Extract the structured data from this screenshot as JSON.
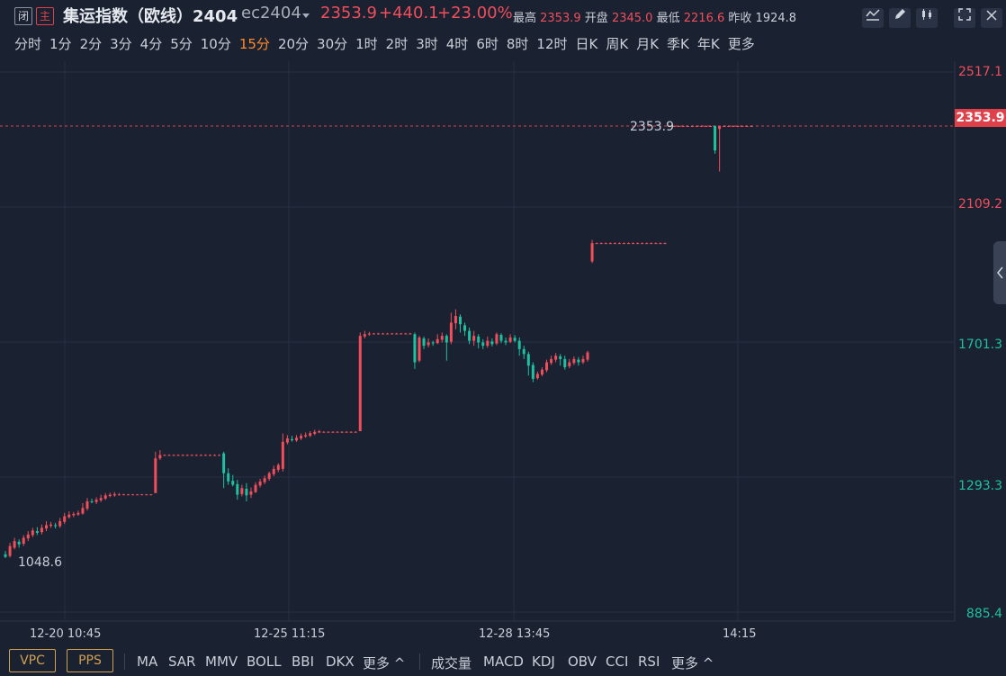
{
  "header": {
    "badge_closed": "闭",
    "badge_main": "主",
    "title": "集运指数（欧线）2404",
    "contract": "ec2404",
    "price": "2353.9",
    "change": "+440.1",
    "change_pct": "+23.00%",
    "high_label": "最高",
    "high_value": "2353.9",
    "open_label": "开盘",
    "open_value": "2345.0",
    "low_label": "最低",
    "low_value": "2216.6",
    "prev_label": "昨收",
    "prev_value": "1924.8"
  },
  "periods": [
    "分时",
    "1分",
    "2分",
    "3分",
    "4分",
    "5分",
    "10分",
    "15分",
    "20分",
    "30分",
    "1时",
    "2时",
    "3时",
    "4时",
    "6时",
    "8时",
    "12时",
    "日K",
    "周K",
    "月K",
    "季K",
    "年K",
    "更多"
  ],
  "active_period": "15分",
  "colors": {
    "up": "#f04e5a",
    "down": "#1fc0a0",
    "bg": "#1a2131",
    "grid": "#263044",
    "accent": "#ff8a2a"
  },
  "price_axis": {
    "top": "2517.1",
    "current": "2353.9",
    "l2": "2109.2",
    "l3": "1701.3",
    "l4": "1293.3",
    "bottom": "885.4"
  },
  "time_axis": [
    "12-20 10:45",
    "12-25 11:15",
    "12-28 13:45",
    "14:15"
  ],
  "chart_data": {
    "type": "candlestick",
    "ylim": [
      885.4,
      2517.1
    ],
    "last_price": 2353.9,
    "low_marker": "1048.6",
    "high_marker": "2353.9",
    "x_labels": [
      "12-20 10:45",
      "12-25 11:15",
      "12-28 13:45",
      "14:15"
    ],
    "candles": [
      [
        1060,
        1052,
        1070,
        1048.6
      ],
      [
        1055,
        1085,
        1095,
        1050
      ],
      [
        1080,
        1100,
        1110,
        1075
      ],
      [
        1098,
        1090,
        1105,
        1080
      ],
      [
        1092,
        1110,
        1118,
        1085
      ],
      [
        1108,
        1120,
        1130,
        1100
      ],
      [
        1118,
        1132,
        1140,
        1112
      ],
      [
        1130,
        1125,
        1142,
        1118
      ],
      [
        1127,
        1140,
        1150,
        1120
      ],
      [
        1138,
        1148,
        1160,
        1130
      ],
      [
        1146,
        1150,
        1158,
        1140
      ],
      [
        1148,
        1145,
        1155,
        1138
      ],
      [
        1145,
        1160,
        1170,
        1140
      ],
      [
        1158,
        1175,
        1185,
        1152
      ],
      [
        1172,
        1180,
        1190,
        1168
      ],
      [
        1178,
        1182,
        1188,
        1172
      ],
      [
        1180,
        1185,
        1192,
        1176
      ],
      [
        1183,
        1200,
        1215,
        1180
      ],
      [
        1198,
        1220,
        1230,
        1192
      ],
      [
        1220,
        1218,
        1228,
        1214
      ],
      [
        1218,
        1225,
        1232,
        1212
      ],
      [
        1223,
        1230,
        1240,
        1218
      ],
      [
        1228,
        1238,
        1245,
        1224
      ],
      [
        1236,
        1240,
        1246,
        1232
      ],
      [
        1238,
        1242,
        1248,
        1234
      ],
      [
        1240,
        1241,
        1245,
        1238
      ],
      [
        1241,
        1241,
        1243,
        1240
      ],
      [
        1241,
        1241,
        1242,
        1240
      ],
      [
        1241,
        1241,
        1242,
        1240
      ],
      [
        1241,
        1241,
        1242,
        1240
      ],
      [
        1241,
        1241,
        1242,
        1240
      ],
      [
        1241,
        1241,
        1242,
        1240
      ],
      [
        1241,
        1241,
        1242,
        1240
      ],
      [
        1245,
        1350,
        1370,
        1300
      ],
      [
        1350,
        1360,
        1375,
        1345
      ],
      [
        1360,
        1360,
        1362,
        1358
      ],
      [
        1360,
        1360,
        1362,
        1358
      ],
      [
        1360,
        1360,
        1362,
        1358
      ],
      [
        1360,
        1360,
        1362,
        1358
      ],
      [
        1360,
        1360,
        1362,
        1358
      ],
      [
        1360,
        1360,
        1362,
        1358
      ],
      [
        1360,
        1360,
        1362,
        1358
      ],
      [
        1360,
        1360,
        1362,
        1358
      ],
      [
        1360,
        1360,
        1362,
        1358
      ],
      [
        1360,
        1360,
        1362,
        1358
      ],
      [
        1360,
        1360,
        1362,
        1358
      ],
      [
        1360,
        1360,
        1362,
        1358
      ],
      [
        1360,
        1360,
        1362,
        1358
      ],
      [
        1365,
        1305,
        1370,
        1260
      ],
      [
        1305,
        1280,
        1320,
        1270
      ],
      [
        1282,
        1270,
        1300,
        1265
      ],
      [
        1272,
        1240,
        1285,
        1225
      ],
      [
        1242,
        1260,
        1270,
        1235
      ],
      [
        1258,
        1238,
        1275,
        1220
      ],
      [
        1240,
        1250,
        1262,
        1230
      ],
      [
        1248,
        1270,
        1278,
        1245
      ],
      [
        1268,
        1280,
        1288,
        1262
      ],
      [
        1278,
        1290,
        1298,
        1272
      ],
      [
        1288,
        1305,
        1310,
        1282
      ],
      [
        1302,
        1318,
        1328,
        1296
      ],
      [
        1315,
        1330,
        1335,
        1308
      ],
      [
        1318,
        1400,
        1425,
        1310
      ],
      [
        1398,
        1410,
        1420,
        1392
      ],
      [
        1408,
        1405,
        1418,
        1400
      ],
      [
        1404,
        1412,
        1420,
        1400
      ],
      [
        1410,
        1418,
        1425,
        1405
      ],
      [
        1416,
        1420,
        1428,
        1412
      ],
      [
        1418,
        1426,
        1432,
        1414
      ],
      [
        1424,
        1430,
        1436,
        1420
      ],
      [
        1428,
        1432,
        1436,
        1426
      ],
      [
        1430,
        1430,
        1432,
        1428
      ],
      [
        1430,
        1430,
        1432,
        1428
      ],
      [
        1430,
        1430,
        1432,
        1428
      ],
      [
        1430,
        1430,
        1432,
        1428
      ],
      [
        1430,
        1430,
        1432,
        1428
      ],
      [
        1430,
        1430,
        1432,
        1428
      ],
      [
        1430,
        1430,
        1432,
        1428
      ],
      [
        1430,
        1430,
        1432,
        1428
      ],
      [
        1432,
        1720,
        1730,
        1700
      ],
      [
        1718,
        1725,
        1735,
        1712
      ],
      [
        1724,
        1727,
        1732,
        1720
      ],
      [
        1727,
        1727,
        1729,
        1725
      ],
      [
        1727,
        1727,
        1729,
        1725
      ],
      [
        1727,
        1727,
        1729,
        1725
      ],
      [
        1727,
        1727,
        1729,
        1725
      ],
      [
        1727,
        1727,
        1729,
        1725
      ],
      [
        1727,
        1727,
        1729,
        1725
      ],
      [
        1727,
        1727,
        1729,
        1725
      ],
      [
        1727,
        1727,
        1729,
        1725
      ],
      [
        1727,
        1727,
        1729,
        1725
      ],
      [
        1725,
        1640,
        1730,
        1620
      ],
      [
        1645,
        1715,
        1720,
        1640
      ],
      [
        1712,
        1690,
        1718,
        1680
      ],
      [
        1692,
        1700,
        1712,
        1685
      ],
      [
        1700,
        1698,
        1705,
        1690
      ],
      [
        1698,
        1710,
        1725,
        1695
      ],
      [
        1708,
        1720,
        1730,
        1700
      ],
      [
        1720,
        1700,
        1725,
        1645
      ],
      [
        1702,
        1760,
        1790,
        1695
      ],
      [
        1758,
        1780,
        1800,
        1740
      ],
      [
        1778,
        1755,
        1785,
        1730
      ],
      [
        1752,
        1735,
        1760,
        1720
      ],
      [
        1735,
        1705,
        1745,
        1695
      ],
      [
        1705,
        1720,
        1735,
        1690
      ],
      [
        1718,
        1700,
        1725,
        1682
      ],
      [
        1700,
        1690,
        1710,
        1680
      ],
      [
        1690,
        1705,
        1718,
        1684
      ],
      [
        1703,
        1695,
        1712,
        1688
      ],
      [
        1697,
        1725,
        1730,
        1692
      ],
      [
        1723,
        1705,
        1728,
        1698
      ],
      [
        1705,
        1700,
        1715,
        1692
      ],
      [
        1702,
        1715,
        1725,
        1698
      ],
      [
        1714,
        1705,
        1722,
        1700
      ],
      [
        1705,
        1680,
        1715,
        1660
      ],
      [
        1680,
        1665,
        1690,
        1650
      ],
      [
        1665,
        1630,
        1672,
        1600
      ],
      [
        1632,
        1590,
        1640,
        1580
      ],
      [
        1592,
        1605,
        1612,
        1588
      ],
      [
        1603,
        1618,
        1625,
        1598
      ],
      [
        1616,
        1640,
        1648,
        1610
      ],
      [
        1638,
        1650,
        1660,
        1632
      ],
      [
        1648,
        1660,
        1668,
        1640
      ],
      [
        1658,
        1650,
        1665,
        1630
      ],
      [
        1650,
        1625,
        1660,
        1618
      ],
      [
        1628,
        1640,
        1650,
        1622
      ],
      [
        1638,
        1650,
        1658,
        1632
      ],
      [
        1648,
        1640,
        1656,
        1630
      ],
      [
        1640,
        1650,
        1660,
        1635
      ],
      [
        1648,
        1670,
        1675,
        1642
      ],
      [
        1945,
        2000,
        2010,
        1940
      ],
      [
        2000,
        2000,
        2002,
        1998
      ],
      [
        2000,
        2000,
        2002,
        1998
      ],
      [
        2000,
        2000,
        2002,
        1998
      ],
      [
        2000,
        2000,
        2002,
        1998
      ],
      [
        2000,
        2000,
        2002,
        1998
      ],
      [
        2000,
        2000,
        2002,
        1998
      ],
      [
        2000,
        2000,
        2002,
        1998
      ],
      [
        2000,
        2000,
        2002,
        1998
      ],
      [
        2000,
        2000,
        2002,
        1998
      ],
      [
        2000,
        2000,
        2002,
        1998
      ],
      [
        2000,
        2000,
        2002,
        1998
      ],
      [
        2000,
        2000,
        2002,
        1998
      ],
      [
        2000,
        2000,
        2002,
        1998
      ],
      [
        2000,
        2000,
        2002,
        1998
      ],
      [
        2000,
        2000,
        2002,
        1998
      ],
      [
        2000,
        2000,
        2002,
        1998
      ],
      [
        2353.9,
        2353.9,
        2356,
        2352
      ],
      [
        2353.9,
        2353.9,
        2356,
        2352
      ],
      [
        2353.9,
        2353.9,
        2356,
        2352
      ],
      [
        2353.9,
        2353.9,
        2356,
        2352
      ],
      [
        2353.9,
        2353.9,
        2356,
        2352
      ],
      [
        2353.9,
        2353.9,
        2356,
        2352
      ],
      [
        2353.9,
        2353.9,
        2356,
        2352
      ],
      [
        2353.9,
        2353.9,
        2356,
        2352
      ],
      [
        2353.9,
        2353.9,
        2356,
        2352
      ],
      [
        2353.9,
        2353.9,
        2356,
        2352
      ],
      [
        2353.9,
        2280,
        2356,
        2270
      ],
      [
        2345.0,
        2353.9,
        2355,
        2216.6
      ],
      [
        2353.9,
        2353.9,
        2356,
        2352
      ],
      [
        2353.9,
        2353.9,
        2356,
        2352
      ],
      [
        2353.9,
        2353.9,
        2356,
        2352
      ],
      [
        2353.9,
        2353.9,
        2356,
        2352
      ],
      [
        2353.9,
        2353.9,
        2356,
        2352
      ],
      [
        2353.9,
        2353.9,
        2356,
        2352
      ],
      [
        2353.9,
        2353.9,
        2356,
        2352
      ]
    ]
  },
  "footer": {
    "main_buttons": [
      "VPC",
      "PPS"
    ],
    "main_indicators": [
      "MA",
      "SAR",
      "MMV",
      "BOLL",
      "BBI",
      "DKX"
    ],
    "more": "更多",
    "sub_indicators": [
      "成交量",
      "MACD",
      "KDJ",
      "OBV",
      "CCI",
      "RSI"
    ],
    "more2": "更多"
  }
}
